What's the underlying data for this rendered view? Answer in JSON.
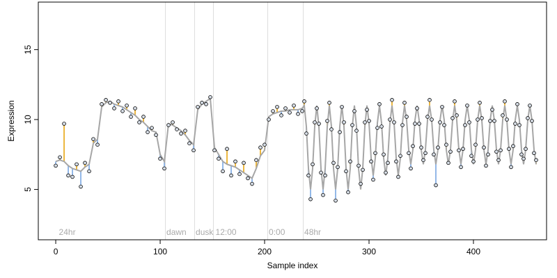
{
  "chart_data": {
    "type": "line",
    "xlabel": "Sample index",
    "ylabel": "Expression",
    "xlim": [
      -16.7,
      470
    ],
    "xticks": [
      0,
      100,
      200,
      300,
      400
    ],
    "ylim": [
      1.4,
      18.4
    ],
    "yticks": [
      5,
      10,
      15
    ],
    "vlines": [
      105,
      133,
      151,
      203,
      237
    ],
    "annotations": [
      {
        "x": 3,
        "text": "24hr"
      },
      {
        "x": 106,
        "text": "dawn"
      },
      {
        "x": 134,
        "text": "dusk"
      },
      {
        "x": 153,
        "text": "12:00"
      },
      {
        "x": 204,
        "text": "0:00"
      },
      {
        "x": 238,
        "text": "48hr"
      }
    ],
    "above_color": "#e69f00",
    "below_color": "#6fa0e0",
    "point_fill": "#d6dde6",
    "x": [
      0,
      4,
      8,
      12,
      16,
      20,
      24,
      28,
      32,
      36,
      40,
      44,
      48,
      52,
      56,
      60,
      64,
      68,
      72,
      76,
      80,
      84,
      88,
      92,
      96,
      100,
      104,
      108,
      112,
      116,
      120,
      124,
      128,
      132,
      136,
      140,
      144,
      148,
      152,
      156,
      160,
      164,
      168,
      172,
      176,
      180,
      184,
      188,
      192,
      196,
      200,
      204,
      208,
      212,
      216,
      220,
      224,
      228,
      232,
      236,
      238,
      240,
      242,
      244,
      246,
      248,
      250,
      252,
      254,
      256,
      258,
      260,
      262,
      264,
      266,
      268,
      270,
      272,
      274,
      276,
      278,
      280,
      282,
      284,
      286,
      288,
      290,
      292,
      294,
      296,
      298,
      300,
      302,
      304,
      306,
      308,
      310,
      312,
      314,
      316,
      318,
      320,
      322,
      324,
      326,
      328,
      330,
      332,
      334,
      336,
      338,
      340,
      342,
      344,
      346,
      348,
      350,
      352,
      354,
      356,
      358,
      360,
      362,
      364,
      366,
      368,
      370,
      372,
      374,
      376,
      378,
      380,
      382,
      384,
      386,
      388,
      390,
      392,
      394,
      396,
      398,
      400,
      402,
      404,
      406,
      408,
      410,
      412,
      414,
      416,
      418,
      420,
      422,
      424,
      426,
      428,
      430,
      432,
      434,
      436,
      438,
      440,
      442,
      444,
      446,
      448,
      450,
      452,
      454,
      456,
      458,
      460
    ],
    "series": [
      {
        "color": "#000000",
        "values": [
          6.7,
          7.3,
          9.7,
          6.0,
          5.9,
          6.8,
          5.2,
          6.9,
          6.3,
          8.6,
          8.2,
          11.1,
          11.4,
          11.2,
          10.8,
          11.3,
          10.6,
          11.0,
          10.2,
          10.8,
          9.8,
          10.2,
          9.1,
          9.4,
          8.9,
          7.2,
          6.5,
          9.6,
          9.8,
          9.3,
          9.0,
          9.2,
          8.3,
          7.8,
          10.9,
          11.2,
          11.1,
          11.6,
          7.8,
          7.2,
          6.3,
          7.9,
          6.0,
          7.0,
          6.1,
          6.9,
          5.8,
          5.4,
          7.1,
          8.0,
          8.2,
          10.0,
          10.6,
          10.9,
          10.3,
          10.8,
          10.5,
          11.0,
          10.4,
          10.6,
          11.3,
          9.0,
          6.0,
          4.3,
          6.8,
          9.8,
          10.8,
          9.7,
          6.2,
          4.6,
          6.0,
          9.9,
          11.2,
          9.3,
          6.9,
          4.2,
          6.6,
          9.1,
          10.9,
          9.8,
          6.3,
          4.8,
          7.0,
          9.6,
          10.6,
          9.2,
          6.7,
          5.4,
          6.4,
          9.8,
          10.7,
          9.9,
          7.0,
          5.7,
          7.6,
          9.4,
          11.1,
          9.5,
          7.5,
          6.2,
          6.9,
          10.0,
          11.4,
          9.8,
          7.0,
          5.9,
          7.4,
          9.6,
          11.2,
          10.2,
          7.6,
          6.5,
          8.1,
          9.7,
          10.8,
          9.7,
          8.0,
          7.1,
          7.6,
          10.2,
          11.4,
          10.0,
          7.5,
          5.3,
          8.0,
          9.8,
          10.9,
          9.6,
          8.2,
          6.9,
          7.7,
          10.1,
          11.3,
          10.3,
          7.8,
          6.6,
          7.9,
          9.6,
          11.0,
          9.8,
          7.4,
          7.0,
          8.2,
          10.0,
          11.2,
          10.1,
          8.0,
          6.7,
          7.5,
          9.9,
          10.7,
          9.9,
          7.7,
          7.1,
          7.8,
          10.3,
          11.3,
          10.0,
          7.9,
          6.6,
          8.1,
          9.7,
          11.1,
          9.6,
          7.5,
          7.2,
          7.9,
          10.1,
          11.0,
          9.9,
          7.6,
          7.1
        ]
      },
      {
        "color": "#a6a6a6",
        "values": [
          7.0,
          7.1,
          7.0,
          6.7,
          6.5,
          6.4,
          6.3,
          6.6,
          6.8,
          8.3,
          8.6,
          10.9,
          11.2,
          11.3,
          11.1,
          11.0,
          10.9,
          10.7,
          10.5,
          10.3,
          10.0,
          9.8,
          9.5,
          9.2,
          9.1,
          7.5,
          7.0,
          9.7,
          9.6,
          9.4,
          9.2,
          8.9,
          8.5,
          8.2,
          10.7,
          11.1,
          11.3,
          11.5,
          8.0,
          7.5,
          7.0,
          6.8,
          6.7,
          6.6,
          6.4,
          6.2,
          6.0,
          5.8,
          6.5,
          7.4,
          7.8,
          10.2,
          10.4,
          10.5,
          10.6,
          10.6,
          10.7,
          10.7,
          10.7,
          10.8,
          11,
          9.5,
          6.5,
          5,
          6.5,
          9.5,
          11,
          9.5,
          6.5,
          5,
          6.5,
          9.5,
          11,
          9.5,
          6.5,
          5,
          6.5,
          9.5,
          11,
          9.5,
          6.5,
          5,
          6.5,
          9.5,
          11,
          9.5,
          6.5,
          5,
          6.5,
          9.5,
          11,
          9.75,
          7.25,
          6,
          7.25,
          9.75,
          11,
          9.75,
          7.25,
          6,
          7.25,
          9.75,
          11,
          9.75,
          7.25,
          6,
          7.25,
          9.75,
          11,
          9.95,
          7.85,
          6.8,
          7.85,
          9.95,
          11,
          9.95,
          7.85,
          6.8,
          7.85,
          9.95,
          11,
          9.95,
          7.85,
          6.8,
          7.85,
          9.95,
          11,
          9.95,
          7.85,
          6.8,
          7.85,
          9.95,
          11,
          9.95,
          7.85,
          6.8,
          7.85,
          9.95,
          11,
          9.95,
          7.85,
          6.8,
          7.85,
          9.95,
          11,
          9.95,
          7.85,
          6.8,
          7.85,
          9.95,
          11,
          9.95,
          7.85,
          6.8,
          7.85,
          9.95,
          11,
          9.95,
          7.85,
          6.8,
          7.85,
          9.95,
          11,
          9.95,
          7.85,
          6.8,
          7.85,
          9.95,
          11,
          9.95,
          7.85,
          6.8
        ]
      }
    ]
  }
}
